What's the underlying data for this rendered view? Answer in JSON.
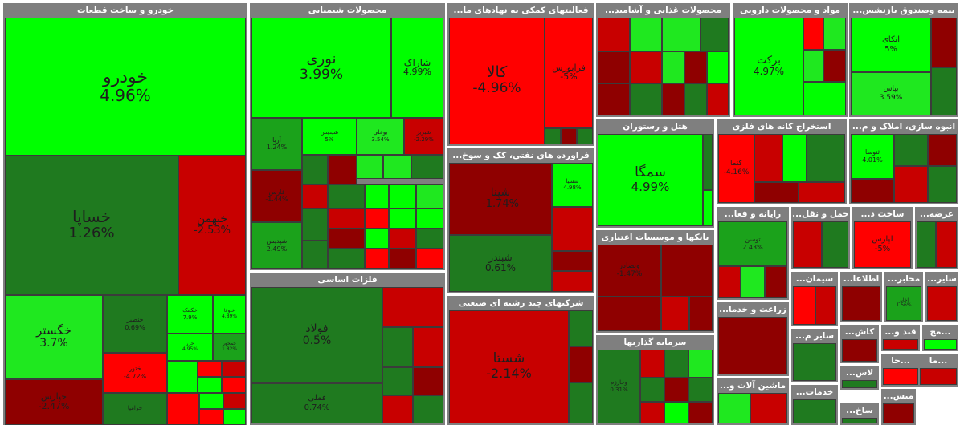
{
  "chart_data": {
    "type": "treemap",
    "colors": {
      "up_strong": "#00ff00",
      "up_medium": "#1fe81f",
      "up_light": "#1ba21b",
      "up_dark": "#1f7a1f",
      "down_dark": "#8f0000",
      "down_medium": "#c80000",
      "down_strong": "#ff0000"
    },
    "sectors": [
      {
        "title": "خودرو و ساخت قطعات",
        "tiles": [
          {
            "symbol": "خودرو",
            "change": "4.96%",
            "color": "up_strong"
          },
          {
            "symbol": "خساپا",
            "change": "1.26%",
            "color": "up_dark"
          },
          {
            "symbol": "خبهمن",
            "change": "-2.53%",
            "color": "down_medium"
          },
          {
            "symbol": "خگستر",
            "change": "3.7%",
            "color": "up_medium"
          },
          {
            "symbol": "خنصیر",
            "change": "0.69%",
            "color": "up_dark"
          },
          {
            "symbol": "خکمک",
            "change": "7.9%",
            "color": "up_strong"
          },
          {
            "symbol": "ختوقا",
            "change": "4.89%",
            "color": "up_strong"
          },
          {
            "symbol": "خزر",
            "change": "4.95%",
            "color": "up_strong"
          },
          {
            "symbol": "خمحور",
            "change": "1.82%",
            "color": "up_light"
          },
          {
            "symbol": "ختور",
            "change": "-4.72%",
            "color": "down_strong"
          },
          {
            "symbol": "خپارس",
            "change": "-2.47%",
            "color": "down_dark"
          },
          {
            "symbol": "خرامیا",
            "change": "",
            "color": "up_dark"
          }
        ]
      },
      {
        "title": "محصولات شیمیایی",
        "tiles": [
          {
            "symbol": "نوری",
            "change": "3.99%",
            "color": "up_strong"
          },
          {
            "symbol": "شاراک",
            "change": "4.99%",
            "color": "up_strong"
          },
          {
            "symbol": "آریا",
            "change": "1.24%",
            "color": "up_light"
          },
          {
            "symbol": "شپدیس",
            "change": "5%",
            "color": "up_strong"
          },
          {
            "symbol": "بوعلی",
            "change": "3.54%",
            "color": "up_medium"
          },
          {
            "symbol": "شبریز",
            "change": "-2.29%",
            "color": "down_medium"
          },
          {
            "symbol": "فارس",
            "change": "-1.44%",
            "color": "down_dark"
          },
          {
            "symbol": "شپدیس",
            "change": "2.49%",
            "color": "up_light"
          }
        ]
      },
      {
        "title": "فعالیتهای کمکی به نهادهای ما...",
        "tiles": [
          {
            "symbol": "کالا",
            "change": "-4.96%",
            "color": "down_strong"
          },
          {
            "symbol": "فرابورس",
            "change": "-5%",
            "color": "down_strong"
          }
        ]
      },
      {
        "title": "محصولات غذایی و آشامید...",
        "tiles": []
      },
      {
        "title": "مواد و محصولات دارویی",
        "tiles": [
          {
            "symbol": "برکت",
            "change": "4.97%",
            "color": "up_strong"
          }
        ]
      },
      {
        "title": "بیمه وصندوق بازنشس...",
        "tiles": [
          {
            "symbol": "اتکای",
            "change": "5%",
            "color": "up_strong"
          },
          {
            "symbol": "بپاس",
            "change": "3.59%",
            "color": "up_medium"
          }
        ]
      },
      {
        "title": "فراورده های نفتی، کک و سوخ...",
        "tiles": [
          {
            "symbol": "شپنا",
            "change": "-1.74%",
            "color": "down_dark"
          },
          {
            "symbol": "شسپا",
            "change": "4.98%",
            "color": "up_strong"
          },
          {
            "symbol": "شبندر",
            "change": "0.61%",
            "color": "up_dark"
          }
        ]
      },
      {
        "title": "هتل و رستوران",
        "tiles": [
          {
            "symbol": "سمگا",
            "change": "4.99%",
            "color": "up_strong"
          }
        ]
      },
      {
        "title": "استخراج کانه های فلزی",
        "tiles": [
          {
            "symbol": "کنما",
            "change": "-4.16%",
            "color": "down_strong"
          }
        ]
      },
      {
        "title": "انبوه سازی، املاک و م...",
        "tiles": [
          {
            "symbol": "ثنوسا",
            "change": "4.01%",
            "color": "up_strong"
          }
        ]
      },
      {
        "title": "بانکها و موسسات اعتباری",
        "tiles": [
          {
            "symbol": "وبصادر",
            "change": "-1.47%",
            "color": "down_dark"
          }
        ]
      },
      {
        "title": "فلزات اساسی",
        "tiles": [
          {
            "symbol": "فولاد",
            "change": "0.5%",
            "color": "up_dark"
          },
          {
            "symbol": "فملی",
            "change": "0.74%",
            "color": "up_dark"
          }
        ]
      },
      {
        "title": "شرکتهای چند رشته ای صنعتی",
        "tiles": [
          {
            "symbol": "شستا",
            "change": "-2.14%",
            "color": "down_medium"
          }
        ]
      },
      {
        "title": "سرمایه گذاریها",
        "tiles": [
          {
            "symbol": "وخارزم",
            "change": "0.31%",
            "color": "up_dark"
          }
        ]
      },
      {
        "title": "رایانه و فعا...",
        "tiles": [
          {
            "symbol": "توسن",
            "change": "2.43%",
            "color": "up_light"
          }
        ]
      },
      {
        "title": "حمل و نقل...",
        "tiles": []
      },
      {
        "title": "ساخت د...",
        "tiles": [
          {
            "symbol": "لپارس",
            "change": "-5%",
            "color": "down_strong"
          }
        ]
      },
      {
        "title": "عرضه...",
        "tiles": []
      },
      {
        "title": "اطلاعا...",
        "tiles": []
      },
      {
        "title": "محابر...",
        "tiles": [
          {
            "symbol": "اخابر",
            "change": "1.56%",
            "color": "up_light"
          }
        ]
      },
      {
        "title": "سیمان...",
        "tiles": []
      },
      {
        "title": "زراعت و خدما...",
        "tiles": []
      },
      {
        "title": "سایر...",
        "tiles": []
      },
      {
        "title": "ماشین آلات و...",
        "tiles": []
      },
      {
        "title": "خدمات...",
        "tiles": []
      },
      {
        "title": "کاش...",
        "tiles": []
      },
      {
        "title": "قند و...",
        "tiles": []
      },
      {
        "title": "سایر م...",
        "tiles": []
      },
      {
        "title": "لاس...",
        "tiles": []
      },
      {
        "title": "منس...",
        "tiles": []
      },
      {
        "title": "ساخ...",
        "tiles": []
      },
      {
        "title": "...مح",
        "tiles": []
      },
      {
        "title": "...حا",
        "tiles": []
      },
      {
        "title": "...ما",
        "tiles": []
      }
    ]
  }
}
